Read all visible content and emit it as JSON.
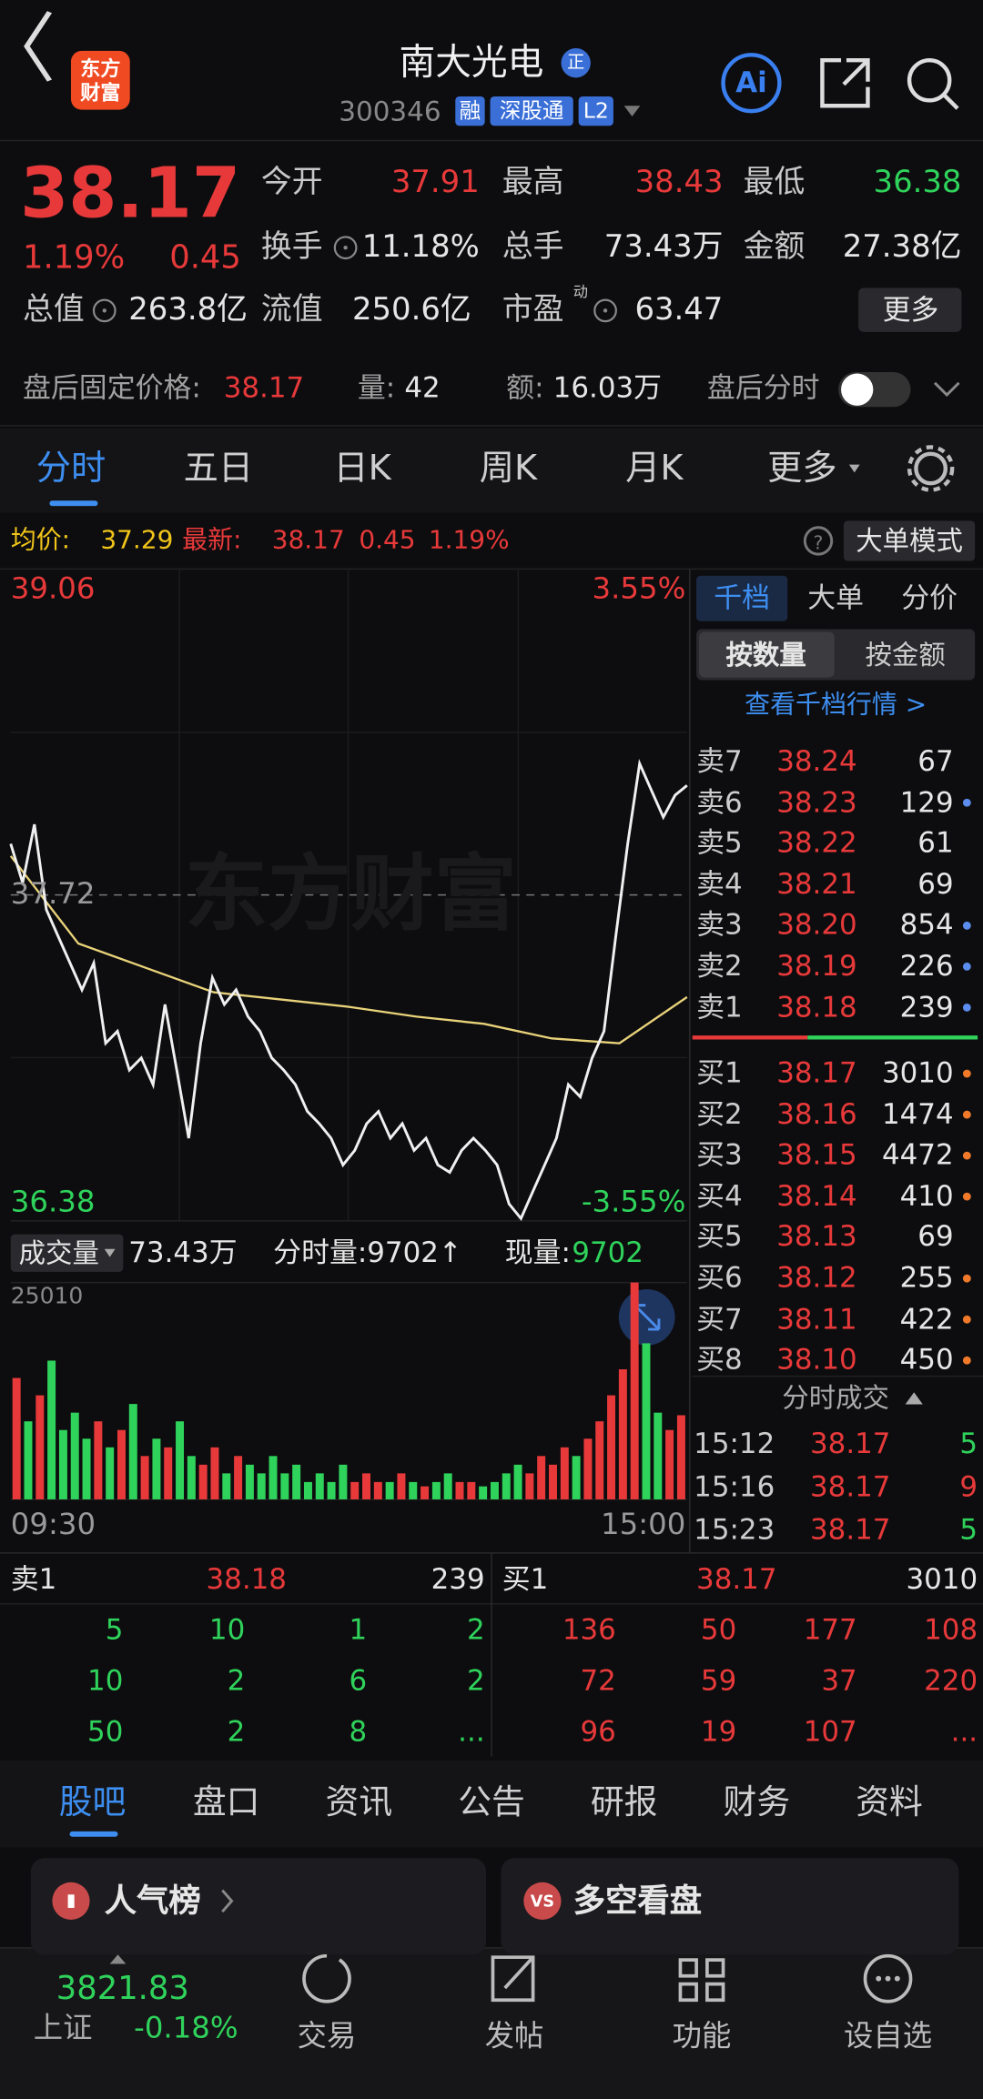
{
  "header": {
    "logo": [
      "东方",
      "财富"
    ],
    "title": "南大光电",
    "badge": "正",
    "code": "300346",
    "tags": [
      "融",
      "深股通",
      "L2"
    ],
    "ai": "Ai"
  },
  "quote": {
    "price": "38.17",
    "change_pct": "1.19%",
    "change": "0.45",
    "fields": [
      {
        "label": "今开",
        "value": "37.91"
      },
      {
        "label": "最高",
        "value": "38.43"
      },
      {
        "label": "最低",
        "value": "36.38"
      },
      {
        "label": "换手",
        "value": "11.18%"
      },
      {
        "label": "总手",
        "value": "73.43万"
      },
      {
        "label": "金额",
        "value": "27.38亿"
      },
      {
        "label": "总值",
        "value": "263.8亿"
      },
      {
        "label": "流值",
        "value": "250.6亿"
      },
      {
        "label": "市盈",
        "value": "63.47"
      }
    ],
    "pe_mark": "动",
    "more": "更多"
  },
  "after_hours": {
    "label": "盘后固定价格:",
    "price": "38.17",
    "vol_label": "量:",
    "vol": "42",
    "amt_label": "额:",
    "amt": "16.03万",
    "toggle_label": "盘后分时"
  },
  "tabs": [
    "分时",
    "五日",
    "日K",
    "周K",
    "月K",
    "更多"
  ],
  "info": {
    "avg_label": "均价:",
    "avg": "37.29",
    "last_label": "最新:",
    "last": "38.17",
    "change": "0.45",
    "pct": "1.19%",
    "mode": "大单模式"
  },
  "chart": {
    "type": "line",
    "watermark": "东方财富",
    "ylim": [
      36.38,
      39.06
    ],
    "yticks": [
      36.38,
      37.72,
      39.06
    ],
    "y2lim": [
      -3.55,
      3.55
    ],
    "y2ticks": [
      {
        "value": -3.55,
        "label": "-3.55%"
      },
      {
        "value": 3.55,
        "label": "3.55%"
      }
    ],
    "prices": [
      37.93,
      37.77,
      38.01,
      37.66,
      37.55,
      37.44,
      37.33,
      37.44,
      37.11,
      37.16,
      37.0,
      37.05,
      36.94,
      37.27,
      37.0,
      36.72,
      37.11,
      37.38,
      37.27,
      37.33,
      37.22,
      37.16,
      37.05,
      37.0,
      36.94,
      36.83,
      36.78,
      36.72,
      36.61,
      36.67,
      36.78,
      36.83,
      36.72,
      36.78,
      36.67,
      36.72,
      36.61,
      36.58,
      36.67,
      36.72,
      36.67,
      36.61,
      36.45,
      36.39,
      36.5,
      36.61,
      36.72,
      36.94,
      36.89,
      37.05,
      37.16,
      37.55,
      37.93,
      38.26,
      38.15,
      38.04,
      38.13,
      38.17
    ],
    "price_color": "#f0f0f0",
    "average": [
      37.88,
      37.52,
      37.42,
      37.32,
      37.29,
      37.26,
      37.22,
      37.19,
      37.13,
      37.11,
      37.3
    ],
    "average_color": "#e8d27a",
    "volume_bar": {
      "label": "成交量",
      "total": "73.43万",
      "tick_label": "分时量:9702↑",
      "now_label": "现量:",
      "now": "9702"
    },
    "volume": {
      "ylim": [
        0,
        25010
      ],
      "yticks": [
        25010
      ],
      "up_color": "#e8393a",
      "down_color": "#2fd35b",
      "values": [
        14000,
        9000,
        12000,
        16000,
        8000,
        10000,
        7000,
        9000,
        6000,
        8000,
        11000,
        5000,
        7000,
        6000,
        9000,
        5000,
        4000,
        6000,
        3000,
        5000,
        4000,
        3000,
        5000,
        3000,
        4000,
        2000,
        3000,
        2000,
        4000,
        2000,
        3000,
        2000,
        2000,
        3000,
        2000,
        1500,
        2000,
        3000,
        2000,
        2000,
        1500,
        2000,
        3000,
        4000,
        3000,
        5000,
        4000,
        6000,
        5000,
        7000,
        9000,
        12000,
        15000,
        25010,
        18000,
        10000,
        8000,
        9702
      ]
    },
    "times": [
      "09:30",
      "15:00"
    ]
  },
  "panel": {
    "tabs": [
      "千档",
      "大单",
      "分价"
    ],
    "modes": [
      "按数量",
      "按金额"
    ],
    "link": "查看千档行情 >",
    "asks": [
      {
        "level": "卖7",
        "price": "38.24",
        "volume": "67"
      },
      {
        "level": "卖6",
        "price": "38.23",
        "volume": "129",
        "dot": true
      },
      {
        "level": "卖5",
        "price": "38.22",
        "volume": "61"
      },
      {
        "level": "卖4",
        "price": "38.21",
        "volume": "69"
      },
      {
        "level": "卖3",
        "price": "38.20",
        "volume": "854",
        "dot": true
      },
      {
        "level": "卖2",
        "price": "38.19",
        "volume": "226",
        "dot": true
      },
      {
        "level": "卖1",
        "price": "38.18",
        "volume": "239",
        "dot": true
      }
    ],
    "bids": [
      {
        "level": "买1",
        "price": "38.17",
        "volume": "3010",
        "dot": true
      },
      {
        "level": "买2",
        "price": "38.16",
        "volume": "1474",
        "dot": true
      },
      {
        "level": "买3",
        "price": "38.15",
        "volume": "4472",
        "dot": true
      },
      {
        "level": "买4",
        "price": "38.14",
        "volume": "410",
        "dot": true
      },
      {
        "level": "买5",
        "price": "38.13",
        "volume": "69"
      },
      {
        "level": "买6",
        "price": "38.12",
        "volume": "255",
        "dot": true
      },
      {
        "level": "买7",
        "price": "38.11",
        "volume": "422",
        "dot": true
      },
      {
        "level": "买8",
        "price": "38.10",
        "volume": "450",
        "dot": true
      }
    ],
    "trades_title": "分时成交",
    "trades": [
      {
        "time": "15:12",
        "price": "38.17",
        "volume": "5",
        "color": "#2fd35b"
      },
      {
        "time": "15:16",
        "price": "38.17",
        "volume": "9",
        "color": "#e8393a"
      },
      {
        "time": "15:23",
        "price": "38.17",
        "volume": "5",
        "color": "#2fd35b"
      }
    ]
  },
  "queue": {
    "sell": {
      "level": "卖1",
      "price": "38.18",
      "volume": "239",
      "rows": [
        [
          "5",
          "10",
          "1",
          "2"
        ],
        [
          "10",
          "2",
          "6",
          "2"
        ],
        [
          "50",
          "2",
          "8",
          "..."
        ]
      ]
    },
    "buy": {
      "level": "买1",
      "price": "38.17",
      "volume": "3010",
      "rows": [
        [
          "136",
          "50",
          "177",
          "108"
        ],
        [
          "72",
          "59",
          "37",
          "220"
        ],
        [
          "96",
          "19",
          "107",
          "..."
        ]
      ]
    }
  },
  "sections": [
    "股吧",
    "盘口",
    "资讯",
    "公告",
    "研报",
    "财务",
    "资料"
  ],
  "cards": [
    {
      "icon": "▮",
      "title": "人气榜"
    },
    {
      "icon": "VS",
      "title": "多空看盘"
    }
  ],
  "nav": {
    "index_value": "3821.83",
    "index_name": "上证",
    "index_change": "-0.18%",
    "items": [
      "交易",
      "发帖",
      "功能",
      "设自选"
    ]
  }
}
